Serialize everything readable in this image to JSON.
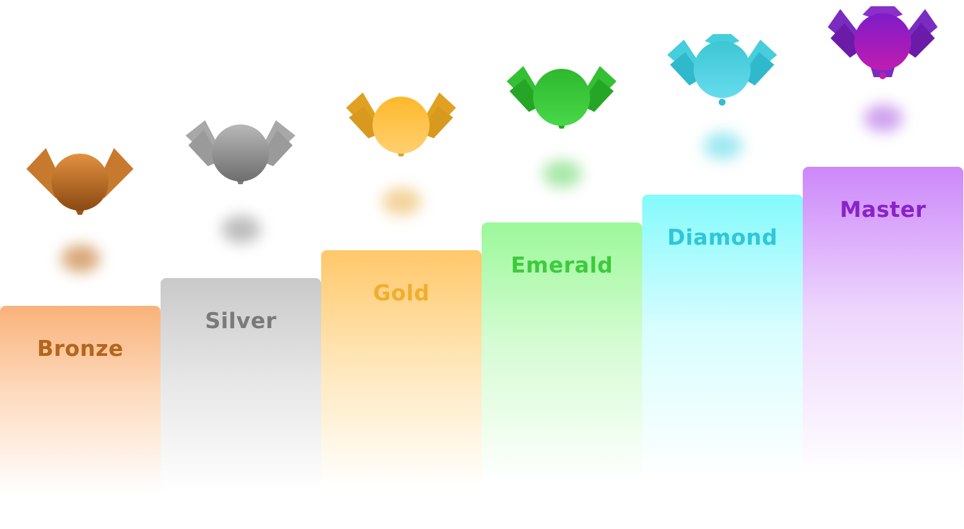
{
  "tiers": [
    {
      "name": "Bronze",
      "color": "#B5651D",
      "light": "#E2913F",
      "dark": "#8A4A12",
      "pedestal_top": "#F9B27A",
      "shadow": "#D8A878"
    },
    {
      "name": "Silver",
      "color": "#7A7A7A",
      "light": "#B8B8B8",
      "dark": "#6E6E6E",
      "pedestal_top": "#C9C9C9",
      "shadow": "#BDBDBD"
    },
    {
      "name": "Gold",
      "color": "#F0AE2C",
      "light": "#FFC23B",
      "dark": "#D89A1E",
      "pedestal_top": "#FFC86A",
      "shadow": "#F3D39A"
    },
    {
      "name": "Emerald",
      "color": "#3DCB3D",
      "light": "#40D040",
      "dark": "#22A022",
      "pedestal_top": "#9CF89A",
      "shadow": "#A8E8A8"
    },
    {
      "name": "Diamond",
      "color": "#2FC6DA",
      "light": "#5BDCEA",
      "dark": "#2AAFC4",
      "pedestal_top": "#84FAFC",
      "shadow": "#9FE9F2"
    },
    {
      "name": "Master",
      "color": "#8A22C8",
      "light": "#9A30D0",
      "dark": "#6A1BA8",
      "pedestal_top": "#CC88FA",
      "shadow": "#CFA3EE"
    }
  ]
}
